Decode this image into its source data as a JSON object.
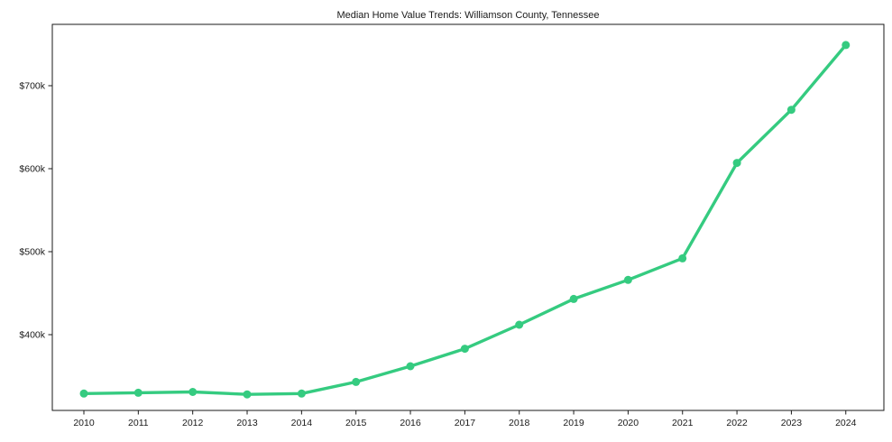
{
  "chart_data": {
    "type": "line",
    "title": "Median Home Value Trends: Williamson County, Tennessee",
    "xlabel": "",
    "ylabel": "",
    "x": [
      2010,
      2011,
      2012,
      2013,
      2014,
      2015,
      2016,
      2017,
      2018,
      2019,
      2020,
      2021,
      2022,
      2023,
      2024
    ],
    "values": [
      329000,
      330000,
      331000,
      328000,
      329000,
      343000,
      362000,
      383000,
      412000,
      443000,
      466000,
      492000,
      607000,
      671000,
      749000
    ],
    "xlim": [
      2009.42,
      2024.7
    ],
    "ylim": [
      308700,
      773900
    ],
    "yticks": [
      {
        "value": 400000,
        "label": "$400k"
      },
      {
        "value": 500000,
        "label": "$500k"
      },
      {
        "value": 600000,
        "label": "$600k"
      },
      {
        "value": 700000,
        "label": "$700k"
      }
    ],
    "xtick_labels": [
      "2010",
      "2011",
      "2012",
      "2013",
      "2014",
      "2015",
      "2016",
      "2017",
      "2018",
      "2019",
      "2020",
      "2021",
      "2022",
      "2023",
      "2024"
    ],
    "grid": false,
    "legend": "none",
    "line_color": "#35cb80",
    "marker_color": "#35cb80",
    "spine_color": "#1a1a1a",
    "background_color": "#ffffff"
  }
}
